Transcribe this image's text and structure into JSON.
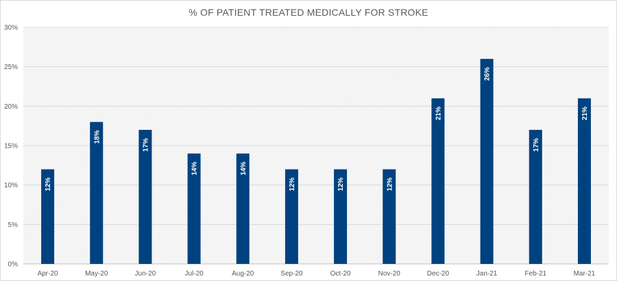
{
  "chart_data": {
    "type": "bar",
    "title": "% OF PATIENT TREATED MEDICALLY FOR STROKE",
    "xlabel": "",
    "ylabel": "",
    "categories": [
      "Apr-20",
      "May-20",
      "Jun-20",
      "Jul-20",
      "Aug-20",
      "Sep-20",
      "Oct-20",
      "Nov-20",
      "Dec-20",
      "Jan-21",
      "Feb-21",
      "Mar-21"
    ],
    "values": [
      12,
      18,
      17,
      14,
      14,
      12,
      12,
      12,
      21,
      26,
      17,
      21
    ],
    "value_labels": [
      "12%",
      "18%",
      "17%",
      "14%",
      "14%",
      "12%",
      "12%",
      "12%",
      "21%",
      "26%",
      "17%",
      "21%"
    ],
    "ylim": [
      0,
      30
    ],
    "yticks": [
      0,
      5,
      10,
      15,
      20,
      25,
      30
    ],
    "ytick_labels": [
      "0%",
      "5%",
      "10%",
      "15%",
      "20%",
      "25%",
      "30%"
    ],
    "grid": true,
    "legend": "none",
    "bar_color": "#00427f",
    "label_color": "#ffffff",
    "plot_background": "hatched light gray"
  }
}
